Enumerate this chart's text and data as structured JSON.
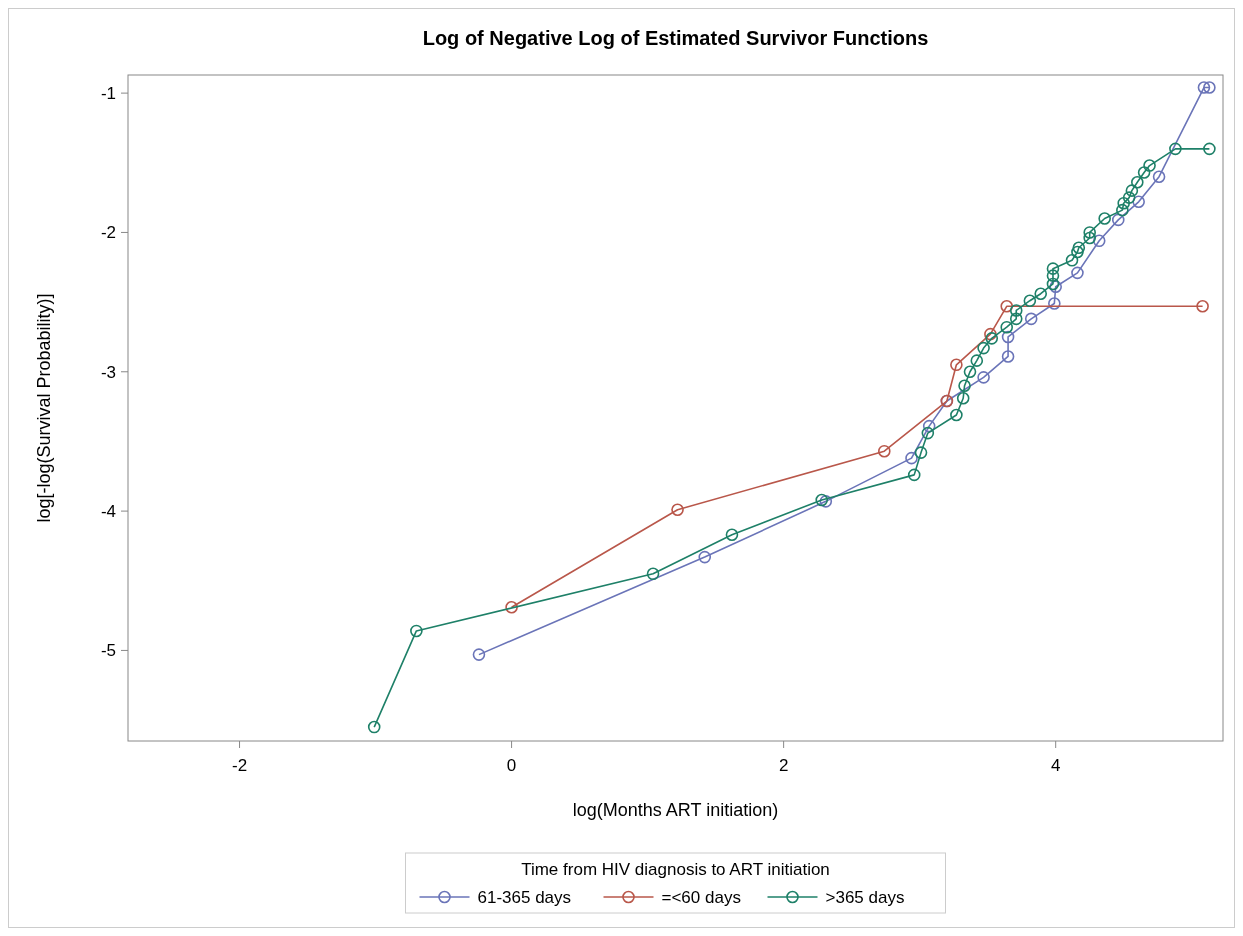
{
  "chart_data": {
    "type": "line",
    "title": "Log of Negative Log of Estimated Survivor Functions",
    "xlabel": "log(Months ART initiation)",
    "ylabel": "log[-log(Survival Probability)]",
    "legend_title": "Time from HIV diagnosis to ART initiation",
    "legend": "bottom",
    "marker": "circle",
    "line_style": "solid",
    "grid": false,
    "xlim": [
      -2.82,
      5.23
    ],
    "xticks": [
      -2,
      0,
      2,
      4
    ],
    "ylim": [
      -5.65,
      -0.87
    ],
    "yticks": [
      -1,
      -2,
      -3,
      -4,
      -5
    ],
    "series": [
      {
        "name": "61-365 days",
        "color": "#6a74b8",
        "x": [
          -0.24,
          1.42,
          2.31,
          2.94,
          3.07,
          3.2,
          3.47,
          3.65,
          3.65,
          3.82,
          3.99,
          4.0,
          4.16,
          4.32,
          4.46,
          4.61,
          4.76,
          5.09,
          5.13
        ],
        "values": [
          -5.03,
          -4.33,
          -3.93,
          -3.62,
          -3.39,
          -3.21,
          -3.04,
          -2.89,
          -2.75,
          -2.62,
          -2.51,
          -2.39,
          -2.29,
          -2.06,
          -1.91,
          -1.78,
          -1.6,
          -0.96,
          -0.96
        ]
      },
      {
        "name": "=<60 days",
        "color": "#b9574a",
        "x": [
          0,
          1.22,
          2.74,
          3.2,
          3.27,
          3.52,
          3.64,
          5.08
        ],
        "values": [
          -4.69,
          -3.99,
          -3.57,
          -3.21,
          -2.95,
          -2.73,
          -2.53,
          -2.53
        ]
      },
      {
        "name": ">365 days",
        "color": "#1e8068",
        "x": [
          -1.01,
          -0.7,
          1.04,
          1.62,
          2.28,
          2.96,
          3.01,
          3.06,
          3.27,
          3.32,
          3.33,
          3.37,
          3.42,
          3.47,
          3.53,
          3.64,
          3.71,
          3.71,
          3.81,
          3.89,
          3.98,
          3.98,
          3.98,
          4.12,
          4.16,
          4.17,
          4.25,
          4.25,
          4.36,
          4.49,
          4.5,
          4.54,
          4.56,
          4.6,
          4.65,
          4.69,
          4.88,
          5.13
        ],
        "values": [
          -5.55,
          -4.86,
          -4.45,
          -4.17,
          -3.92,
          -3.74,
          -3.58,
          -3.44,
          -3.31,
          -3.19,
          -3.1,
          -3.0,
          -2.92,
          -2.83,
          -2.76,
          -2.68,
          -2.62,
          -2.56,
          -2.49,
          -2.44,
          -2.37,
          -2.31,
          -2.26,
          -2.2,
          -2.14,
          -2.11,
          -2.04,
          -2.0,
          -1.9,
          -1.84,
          -1.79,
          -1.75,
          -1.7,
          -1.64,
          -1.57,
          -1.52,
          -1.4,
          -1.4
        ]
      }
    ]
  }
}
